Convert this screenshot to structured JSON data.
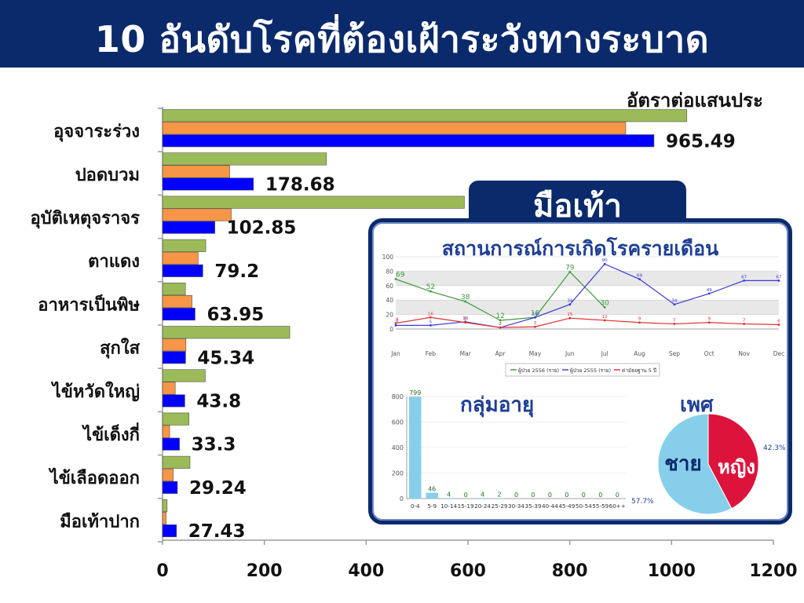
{
  "header": {
    "title": "10 อันดับโรคที่ต้องเฝ้าระวังทางระบาด"
  },
  "colors": {
    "header_bg": "#0b2a6b",
    "series_1": "#9bbb59",
    "series_2": "#f79646",
    "series_3": "#0000ff",
    "inset_line_2556": "#3a9a3a",
    "inset_line_2555": "#3a3ad8",
    "inset_line_median": "#e03030",
    "age_bar": "#87ceeb",
    "pie_male": "#87ceeb",
    "pie_female": "#dc143c"
  },
  "chart_data": [
    {
      "type": "bar",
      "orientation": "horizontal",
      "title": "",
      "unit_label": "อัตราต่อแสนประ",
      "categories": [
        "อุจจาระร่วง",
        "ปอดบวม",
        "อุบัติเหตุจราจร",
        "ตาแดง",
        "อาหารเป็นพิษ",
        "สุกใส",
        "ไข้หวัดใหญ่",
        "ไข้เด็งกี่",
        "ไข้เลือดออก",
        "มือเท้าปาก"
      ],
      "series": [
        {
          "color": "#9bbb59",
          "values": [
            1030,
            322,
            593,
            85,
            45,
            250,
            84,
            52,
            54,
            9
          ]
        },
        {
          "color": "#f79646",
          "values": [
            910,
            132,
            135,
            70,
            58,
            46,
            25,
            14,
            21,
            7
          ]
        },
        {
          "color": "#0000ff",
          "values": [
            965.49,
            178.68,
            102.85,
            79.2,
            63.95,
            45.34,
            43.8,
            33.3,
            29.24,
            27.43
          ]
        }
      ],
      "data_labels": [
        "965.49",
        "178.68",
        "102.85",
        "79.2",
        "63.95",
        "45.34",
        "43.8",
        "33.3",
        "29.24",
        "27.43"
      ],
      "xlim": [
        0,
        1200
      ],
      "xticks": [
        "0",
        "200",
        "400",
        "600",
        "800",
        "1000",
        "1200"
      ]
    },
    {
      "type": "line",
      "title": "สถานการณ์การเกิดโรครายเดือน",
      "heading_tab": "มือเท้า",
      "months": [
        "Jan",
        "Feb",
        "Mar",
        "Apr",
        "May",
        "Jun",
        "Jul",
        "Aug",
        "Sep",
        "Oct",
        "Nov",
        "Dec"
      ],
      "ylim": [
        0,
        100
      ],
      "yticks": [
        "100",
        "80",
        "60",
        "40",
        "20",
        "0"
      ],
      "series": [
        {
          "name": "ผู้ป่วย 2556 (ราย)",
          "color": "#3a9a3a",
          "values": [
            69,
            52,
            38,
            12,
            16,
            79,
            30,
            null,
            null,
            null,
            null,
            null
          ]
        },
        {
          "name": "ผู้ป่วย 2555 (ราย)",
          "color": "#3a3ad8",
          "values": [
            5,
            5,
            10,
            2,
            16,
            34,
            90,
            69,
            34,
            49,
            67,
            67
          ]
        },
        {
          "name": "ค่ามัธยฐาน 5 ปี",
          "color": "#e03030",
          "values": [
            8,
            16,
            9,
            2,
            3,
            15,
            12,
            9,
            7,
            9,
            7,
            6
          ]
        }
      ]
    },
    {
      "type": "bar",
      "title": "กลุ่มอายุ",
      "categories": [
        "0-4",
        "5-9",
        "10-14",
        "15-19",
        "20-24",
        "25-29",
        "30-34",
        "35-39",
        "40-44",
        "45-49",
        "50-54",
        "55-59",
        "60++"
      ],
      "values": [
        799,
        46,
        4,
        0,
        4,
        2,
        0,
        0,
        0,
        0,
        0,
        0,
        0
      ],
      "ylim": [
        0,
        800
      ],
      "yticks": [
        "800",
        "600",
        "400",
        "200",
        "0"
      ]
    },
    {
      "type": "pie",
      "title": "เพศ",
      "slices": [
        {
          "label": "ชาย",
          "value": 57.7,
          "pct_label": "57.7%",
          "color": "#87ceeb"
        },
        {
          "label": "หญิง",
          "value": 42.3,
          "pct_label": "42.3%",
          "color": "#dc143c"
        }
      ]
    }
  ]
}
